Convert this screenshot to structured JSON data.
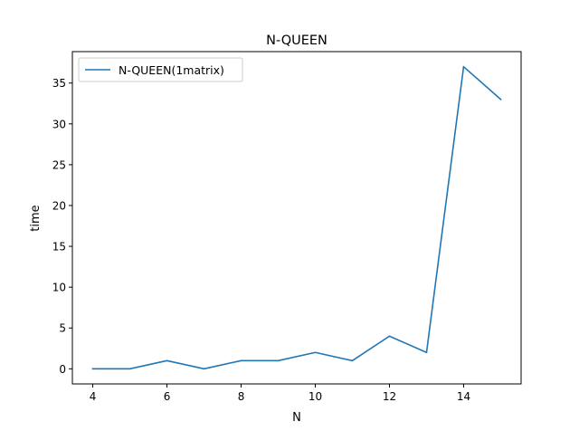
{
  "chart_data": {
    "type": "line",
    "title": "N-QUEEN",
    "xlabel": "N",
    "ylabel": "time",
    "xlim": [
      3.45,
      15.55
    ],
    "ylim": [
      -1.85,
      38.85
    ],
    "xticks": [
      4,
      6,
      8,
      10,
      12,
      14
    ],
    "yticks": [
      0,
      5,
      10,
      15,
      20,
      25,
      30,
      35
    ],
    "grid": false,
    "legend_position": "top-left",
    "series": [
      {
        "name": "N-QUEEN(1matrix)",
        "color": "#1f77b4",
        "x": [
          4,
          5,
          6,
          7,
          8,
          9,
          10,
          11,
          12,
          13,
          14,
          15
        ],
        "y": [
          0,
          0,
          1,
          0,
          1,
          1,
          2,
          1,
          4,
          2,
          37,
          33
        ]
      }
    ]
  }
}
